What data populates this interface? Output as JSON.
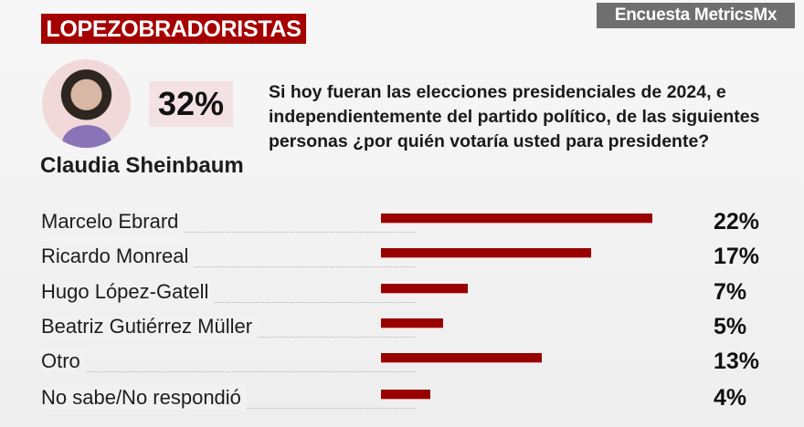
{
  "source_badge": "Encuesta MetricsMx",
  "group_tag": "LOPEZOBRADORISTAS",
  "leader": {
    "name": "Claudia Sheinbaum",
    "value_label": "32%",
    "value": 32
  },
  "question": "Si hoy fueran las elecciones presidenciales de 2024, e independientemente del partido político, de las siguientes personas ¿por quién votaría usted para presidente?",
  "colors": {
    "bar": "#990000",
    "tag": "#a50000",
    "badge": "#6f6f6f",
    "highlight": "#f4e1e3"
  },
  "chart_data": {
    "type": "bar",
    "orientation": "horizontal",
    "unit": "%",
    "categories": [
      "Marcelo Ebrard",
      "Ricardo Monreal",
      "Hugo López-Gatell",
      "Beatriz Gutiérrez Müller",
      "Otro",
      "No sabe/No respondió"
    ],
    "values": [
      22,
      17,
      7,
      5,
      13,
      4
    ],
    "value_labels": [
      "22%",
      "17%",
      "7%",
      "5%",
      "13%",
      "4%"
    ]
  }
}
